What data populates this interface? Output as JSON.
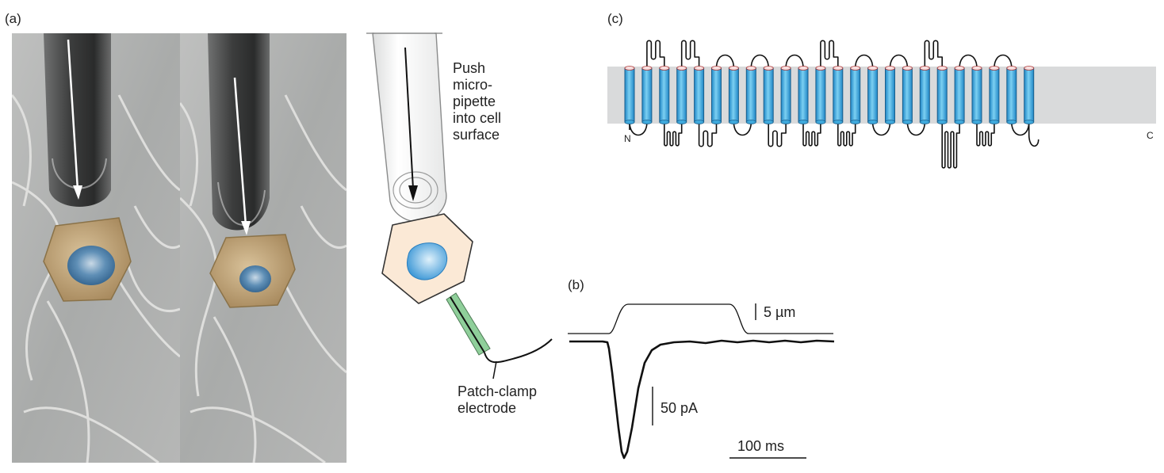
{
  "panel_a": {
    "label": "(a)"
  },
  "panel_b": {
    "label": "(b)",
    "scale_um": "5 µm",
    "scale_pa": "50 pA",
    "scale_ms": "100 ms"
  },
  "panel_c": {
    "label": "(c)",
    "n_terminus": "N",
    "c_terminus": "C"
  },
  "diagram": {
    "push_lines": [
      "Push",
      "micro-",
      "pipette",
      "into cell",
      "surface"
    ],
    "electrode_lines": [
      "Patch-clamp",
      "electrode"
    ]
  },
  "colors": {
    "helix_blue": "#3fa9dc",
    "membrane_gray": "#d9dadb",
    "cell_fill": "#fbe9d6",
    "nucleus_blue": "#4fa8e0",
    "electrode_green": "#8fcf9a"
  },
  "icons": [
    "pipette-arrow-icon"
  ]
}
